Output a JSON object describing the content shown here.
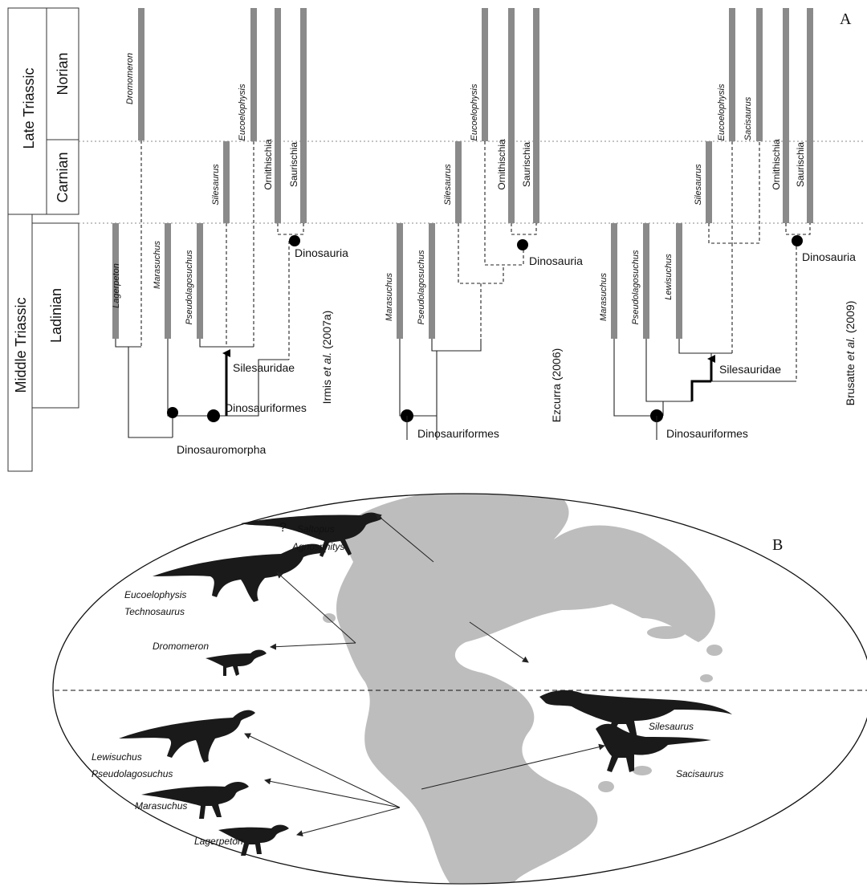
{
  "panel_a": {
    "letter": "A",
    "strat": {
      "late_triassic": "Late Triassic",
      "middle_triassic": "Middle Triassic",
      "norian": "Norian",
      "carnian": "Carnian",
      "ladinian": "Ladinian"
    },
    "tree1": {
      "source_prefix": "Irmis ",
      "source_etal": "et al.",
      "source_suffix": " (2007a)",
      "taxa": {
        "lagerpeton": "Lagerpeton",
        "dromomeron": "Dromomeron",
        "marasuchus": "Marasuchus",
        "pseudolagosuchus": "Pseudolagosuchus",
        "silesaurus": "Silesaurus",
        "eucoelophysis": "Eucoelophysis",
        "ornithischia": "Ornithischia",
        "saurischia": "Saurischia"
      },
      "clades": {
        "silesauridae": "Silesauridae",
        "dinosauria": "Dinosauria",
        "dinosauriformes": "Dinosauriformes",
        "dinosauromorpha": "Dinosauromorpha"
      }
    },
    "tree2": {
      "source": "Ezcurra (2006)",
      "taxa": {
        "marasuchus": "Marasuchus",
        "pseudolagosuchus": "Pseudolagosuchus",
        "silesaurus": "Silesaurus",
        "eucoelophysis": "Eucoelophysis",
        "ornithischia": "Ornithischia",
        "saurischia": "Saurischia"
      },
      "clades": {
        "dinosauria": "Dinosauria",
        "dinosauriformes": "Dinosauriformes"
      }
    },
    "tree3": {
      "source_prefix": "Brusatte ",
      "source_etal": "et al.",
      "source_suffix": " (2009)",
      "taxa": {
        "marasuchus": "Marasuchus",
        "pseudolagosuchus": "Pseudolagosuchus",
        "lewisuchus": "Lewisuchus",
        "silesaurus": "Silesaurus",
        "eucoelophysis": "Eucoelophysis",
        "sacisaurus": "Sacisaurus",
        "ornithischia": "Ornithischia",
        "saurischia": "Saurischia"
      },
      "clades": {
        "silesauridae": "Silesauridae",
        "dinosauria": "Dinosauria",
        "dinosauriformes": "Dinosauriformes"
      }
    }
  },
  "panel_b": {
    "letter": "B",
    "question_mark": "?",
    "labels": {
      "saltopus": "Saltopus",
      "agnosphitys": "Agnosphitys",
      "eucoelophysis": "Eucoelophysis",
      "technosaurus": "Technosaurus",
      "dromomeron": "Dromomeron",
      "silesaurus": "Silesaurus",
      "lewisuchus": "Lewisuchus",
      "pseudolagosuchus": "Pseudolagosuchus",
      "marasuchus": "Marasuchus",
      "lagerpeton": "Lagerpeton",
      "sacisaurus": "Sacisaurus"
    }
  },
  "colors": {
    "range_bar": "#8a8a8a",
    "land": "#bdbdbd",
    "silhouette": "#1a1a1a"
  }
}
